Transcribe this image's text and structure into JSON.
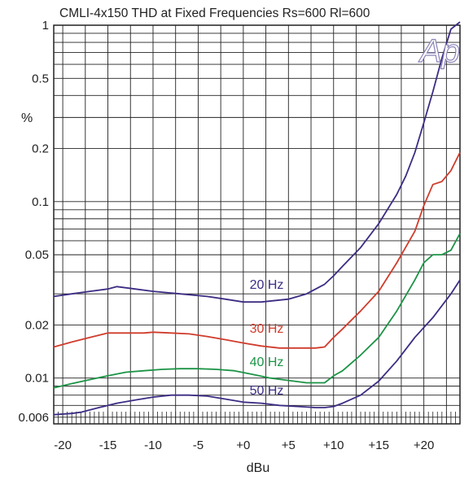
{
  "chart_data": {
    "type": "line",
    "title": "CMLI-4x150  THD at Fixed Frequencies  Rs=600 Rl=600",
    "xlabel": "dBu",
    "ylabel": "%",
    "y_scale": "log",
    "xlim": [
      -21,
      24
    ],
    "ylim": [
      0.0055,
      1
    ],
    "grid": true,
    "x_ticks": [
      {
        "value": -20,
        "label": "-20"
      },
      {
        "value": -15,
        "label": "-15"
      },
      {
        "value": -10,
        "label": "-10"
      },
      {
        "value": -5,
        "label": "-5"
      },
      {
        "value": 0,
        "label": "+0"
      },
      {
        "value": 5,
        "label": "+5"
      },
      {
        "value": 10,
        "label": "+10"
      },
      {
        "value": 15,
        "label": "+15"
      },
      {
        "value": 20,
        "label": "+20"
      }
    ],
    "y_ticks": [
      {
        "value": 1,
        "label": "1"
      },
      {
        "value": 0.5,
        "label": "0.5"
      },
      {
        "value": 0.2,
        "label": "0.2"
      },
      {
        "value": 0.1,
        "label": "0.1"
      },
      {
        "value": 0.05,
        "label": "0.05"
      },
      {
        "value": 0.02,
        "label": "0.02"
      },
      {
        "value": 0.01,
        "label": "0.01"
      },
      {
        "value": 0.006,
        "label": "0.006"
      }
    ],
    "logo": "Ap",
    "series": [
      {
        "name": "20 Hz",
        "color": "#3d2c84",
        "x": [
          -21,
          -19,
          -17,
          -15,
          -14,
          -12,
          -10,
          -7,
          -4,
          -2,
          0,
          2,
          5,
          7,
          9,
          10,
          11,
          13,
          15,
          17,
          18,
          19,
          20,
          21,
          22,
          23,
          24
        ],
        "y": [
          0.029,
          0.03,
          0.031,
          0.032,
          0.033,
          0.032,
          0.031,
          0.03,
          0.029,
          0.028,
          0.027,
          0.027,
          0.028,
          0.03,
          0.034,
          0.038,
          0.043,
          0.055,
          0.075,
          0.11,
          0.14,
          0.19,
          0.28,
          0.42,
          0.65,
          0.95,
          1.2
        ]
      },
      {
        "name": "30 Hz",
        "color": "#d03c2c",
        "x": [
          -21,
          -19,
          -17,
          -15,
          -13,
          -11,
          -10,
          -8,
          -6,
          -4,
          -2,
          0,
          2,
          4,
          6,
          8,
          9,
          10,
          11,
          13,
          15,
          17,
          19,
          20,
          21,
          22,
          23,
          24
        ],
        "y": [
          0.015,
          0.016,
          0.017,
          0.018,
          0.018,
          0.018,
          0.0182,
          0.018,
          0.0178,
          0.0172,
          0.0165,
          0.0158,
          0.0152,
          0.0148,
          0.0148,
          0.0148,
          0.015,
          0.017,
          0.019,
          0.024,
          0.031,
          0.045,
          0.068,
          0.095,
          0.125,
          0.13,
          0.15,
          0.19
        ]
      },
      {
        "name": "40 Hz",
        "color": "#1c9446",
        "x": [
          -21,
          -19,
          -17,
          -15,
          -13,
          -11,
          -9,
          -7,
          -5,
          -3,
          -1,
          1,
          3,
          5,
          7,
          9,
          10,
          11,
          13,
          15,
          17,
          19,
          20,
          21,
          22,
          23,
          24
        ],
        "y": [
          0.0088,
          0.0093,
          0.0098,
          0.0103,
          0.0108,
          0.011,
          0.0112,
          0.0113,
          0.0113,
          0.0112,
          0.011,
          0.0105,
          0.01,
          0.0097,
          0.0094,
          0.0094,
          0.0103,
          0.011,
          0.0135,
          0.017,
          0.024,
          0.036,
          0.045,
          0.05,
          0.05,
          0.053,
          0.066
        ]
      },
      {
        "name": "50 Hz",
        "color": "#3d2c84",
        "x": [
          -21,
          -19,
          -18,
          -16,
          -14,
          -12,
          -10,
          -8,
          -6,
          -4,
          -2,
          0,
          2,
          4,
          6,
          8,
          9,
          10,
          11,
          13,
          15,
          17,
          19,
          21,
          23,
          24
        ],
        "y": [
          0.0062,
          0.0063,
          0.0064,
          0.0068,
          0.0072,
          0.0075,
          0.0078,
          0.008,
          0.008,
          0.0079,
          0.0076,
          0.0073,
          0.0072,
          0.007,
          0.0069,
          0.0068,
          0.0068,
          0.0069,
          0.0072,
          0.008,
          0.0096,
          0.0125,
          0.017,
          0.022,
          0.03,
          0.036
        ]
      }
    ],
    "annotations": [
      {
        "text": "20 Hz",
        "series": 0,
        "x": 0.7,
        "y": 0.031
      },
      {
        "text": "30 Hz",
        "series": 1,
        "x": 0.7,
        "y": 0.0175
      },
      {
        "text": "40 Hz",
        "series": 2,
        "x": 0.7,
        "y": 0.0113
      },
      {
        "text": "50 Hz",
        "series": 3,
        "x": 0.7,
        "y": 0.0078
      }
    ]
  }
}
